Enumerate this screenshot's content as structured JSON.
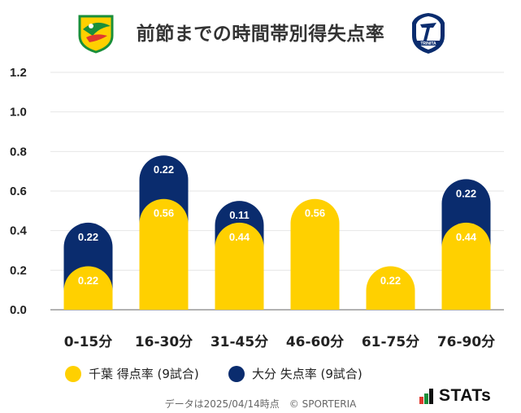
{
  "title": "前節までの時間帯別得失点率",
  "logos": {
    "left": "jef-chiba-crest",
    "right": "trinita-oita-crest",
    "right_text": "TRINITA"
  },
  "colors": {
    "chiba": "#FFD000",
    "oita": "#0A2C6E",
    "grid": "#e6e6e6",
    "axis": "#999999"
  },
  "legend": {
    "chiba": "千葉 得点率 (9試合)",
    "oita": "大分 失点率 (9試合)"
  },
  "footer": "データは2025/04/14時点　© SPORTERIA",
  "brand": "STATs",
  "chart_data": {
    "type": "bar",
    "stacked": true,
    "categories": [
      "0-15分",
      "16-30分",
      "31-45分",
      "46-60分",
      "61-75分",
      "76-90分"
    ],
    "series": [
      {
        "name": "千葉 得点率 (9試合)",
        "values": [
          0.22,
          0.56,
          0.44,
          0.56,
          0.22,
          0.44
        ]
      },
      {
        "name": "大分 失点率 (9試合)",
        "values": [
          0.22,
          0.22,
          0.11,
          0.0,
          0.0,
          0.22
        ]
      }
    ],
    "ylim": [
      0,
      1.2
    ],
    "yticks": [
      "0.0",
      "0.2",
      "0.4",
      "0.6",
      "0.8",
      "1.0",
      "1.2"
    ],
    "grid": true,
    "legend_position": "bottom"
  }
}
